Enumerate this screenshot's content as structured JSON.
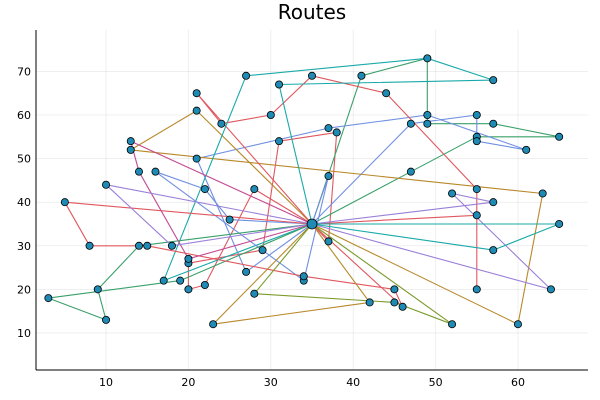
{
  "chart_data": {
    "type": "line",
    "title": "Routes",
    "xlabel": "",
    "ylabel": "",
    "xlim": [
      1.5,
      68.5
    ],
    "ylim": [
      1.5,
      79.5
    ],
    "xticks": [
      10,
      20,
      30,
      40,
      50,
      60
    ],
    "yticks": [
      10,
      20,
      30,
      40,
      50,
      60,
      70
    ],
    "grid": true,
    "legend": "none",
    "colors": {
      "marker": "#1f8bb5",
      "palette": [
        "#e0575e",
        "#3aa06a",
        "#6f8fe0",
        "#b8882a",
        "#9a7fd8",
        "#1aa9a9",
        "#c44a94",
        "#7a9a2a"
      ]
    },
    "depot": [
      35,
      35
    ],
    "routes": [
      {
        "color": 0,
        "points": [
          [
            35,
            35
          ],
          [
            28,
            43
          ],
          [
            22,
            21
          ],
          [
            20,
            20
          ],
          [
            20,
            26
          ],
          [
            29,
            29
          ],
          [
            31,
            54
          ],
          [
            38,
            56
          ],
          [
            37,
            31
          ],
          [
            35,
            35
          ]
        ]
      },
      {
        "color": 1,
        "points": [
          [
            35,
            35
          ],
          [
            47,
            47
          ],
          [
            55,
            55
          ],
          [
            65,
            55
          ],
          [
            57,
            58
          ],
          [
            49,
            58
          ],
          [
            49,
            73
          ],
          [
            41,
            69
          ],
          [
            35,
            35
          ]
        ]
      },
      {
        "color": 2,
        "points": [
          [
            35,
            35
          ],
          [
            27,
            24
          ],
          [
            21,
            50
          ],
          [
            37,
            57
          ],
          [
            49,
            60
          ],
          [
            61,
            52
          ],
          [
            55,
            54
          ],
          [
            55,
            60
          ],
          [
            47,
            58
          ],
          [
            35,
            35
          ]
        ]
      },
      {
        "color": 3,
        "points": [
          [
            35,
            35
          ],
          [
            21,
            61
          ],
          [
            13,
            52
          ],
          [
            63,
            42
          ],
          [
            60,
            12
          ],
          [
            35,
            35
          ]
        ]
      },
      {
        "color": 0,
        "points": [
          [
            35,
            35
          ],
          [
            21,
            65
          ],
          [
            24,
            58
          ],
          [
            30,
            60
          ],
          [
            35,
            69
          ],
          [
            44,
            65
          ],
          [
            55,
            43
          ],
          [
            55,
            20
          ],
          [
            55,
            37
          ],
          [
            35,
            35
          ]
        ]
      },
      {
        "color": 5,
        "points": [
          [
            35,
            35
          ],
          [
            31,
            67
          ],
          [
            57,
            68
          ],
          [
            49,
            73
          ],
          [
            27,
            69
          ],
          [
            17,
            22
          ],
          [
            35,
            35
          ]
        ]
      },
      {
        "color": 2,
        "points": [
          [
            35,
            35
          ],
          [
            25,
            36
          ],
          [
            22,
            43
          ],
          [
            16,
            47
          ],
          [
            34,
            22
          ],
          [
            37,
            46
          ],
          [
            35,
            35
          ]
        ]
      },
      {
        "color": 4,
        "points": [
          [
            35,
            35
          ],
          [
            64,
            20
          ],
          [
            52,
            42
          ],
          [
            57,
            40
          ],
          [
            35,
            35
          ]
        ]
      },
      {
        "color": 1,
        "points": [
          [
            35,
            35
          ],
          [
            14,
            30
          ],
          [
            9,
            20
          ],
          [
            10,
            13
          ],
          [
            3,
            18
          ],
          [
            19,
            22
          ],
          [
            35,
            35
          ]
        ]
      },
      {
        "color": 0,
        "points": [
          [
            35,
            35
          ],
          [
            5,
            40
          ],
          [
            8,
            30
          ],
          [
            15,
            30
          ],
          [
            34,
            23
          ],
          [
            45,
            20
          ],
          [
            46,
            16
          ],
          [
            35,
            35
          ]
        ]
      },
      {
        "color": 5,
        "points": [
          [
            35,
            35
          ],
          [
            65,
            35
          ],
          [
            57,
            29
          ],
          [
            35,
            35
          ]
        ]
      },
      {
        "color": 3,
        "points": [
          [
            35,
            35
          ],
          [
            23,
            12
          ],
          [
            42,
            17
          ],
          [
            35,
            35
          ]
        ]
      },
      {
        "color": 6,
        "points": [
          [
            35,
            35
          ],
          [
            13,
            54
          ],
          [
            14,
            47
          ],
          [
            20,
            27
          ],
          [
            35,
            35
          ]
        ]
      },
      {
        "color": 4,
        "points": [
          [
            35,
            35
          ],
          [
            10,
            44
          ],
          [
            18,
            30
          ],
          [
            35,
            35
          ]
        ]
      },
      {
        "color": 7,
        "points": [
          [
            35,
            35
          ],
          [
            28,
            19
          ],
          [
            45,
            17
          ],
          [
            52,
            12
          ],
          [
            35,
            35
          ]
        ]
      }
    ]
  }
}
